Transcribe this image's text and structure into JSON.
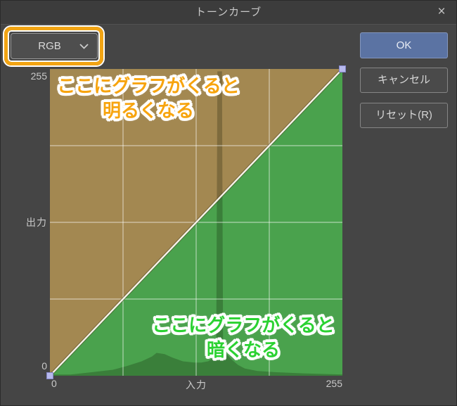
{
  "dialog": {
    "title": "トーンカーブ",
    "close_glyph": "×"
  },
  "channel_select": {
    "value": "RGB"
  },
  "buttons": {
    "ok": "OK",
    "cancel": "キャンセル",
    "reset": "リセット(R)"
  },
  "axes": {
    "y_max": "255",
    "y_label": "出力",
    "y_min": "0",
    "x_min": "0",
    "x_label": "入力",
    "x_max": "255"
  },
  "annotations": {
    "brighten": {
      "line1": "ここにグラフがくると",
      "line2": "明るくなる"
    },
    "darken": {
      "line1": "ここにグラフがくると",
      "line2": "暗くなる"
    }
  },
  "colors": {
    "brighten_area": "#a38851",
    "darken_area": "#4aa24d",
    "histogram_overlay": "rgba(10,15,0,0.24)",
    "gridline": "rgba(255,255,255,0.55)",
    "curve_line": "#f8f5ec",
    "curve_line_shadow": "rgba(80,70,40,0.5)",
    "handle_fill": "#b7b9ed",
    "handle_stroke": "#8486c8",
    "annotation_orange": "#f7a40e",
    "annotation_green": "#2bd232",
    "accent_ring": "#f2a413",
    "ok_button": "#5b73a3"
  },
  "chart_data": {
    "type": "line",
    "title": "トーンカーブ",
    "xlabel": "入力",
    "ylabel": "出力",
    "xlim": [
      0,
      255
    ],
    "ylim": [
      0,
      255
    ],
    "grid_divisions": 4,
    "curve_points": [
      [
        0,
        0
      ],
      [
        255,
        255
      ]
    ],
    "histogram_profile": [
      [
        0,
        1
      ],
      [
        18,
        1
      ],
      [
        37,
        3
      ],
      [
        55,
        5
      ],
      [
        67,
        8
      ],
      [
        80,
        12
      ],
      [
        89,
        16
      ],
      [
        93,
        19
      ],
      [
        100,
        18
      ],
      [
        107,
        15
      ],
      [
        116,
        12
      ],
      [
        126,
        11
      ],
      [
        132,
        11
      ],
      [
        138,
        12
      ],
      [
        143,
        15
      ],
      [
        145,
        17
      ],
      [
        146,
        253
      ],
      [
        150,
        253
      ],
      [
        151,
        22
      ],
      [
        155,
        17
      ],
      [
        159,
        13
      ],
      [
        164,
        9
      ],
      [
        170,
        6
      ],
      [
        181,
        4
      ],
      [
        196,
        3
      ],
      [
        221,
        2
      ],
      [
        255,
        1
      ]
    ]
  }
}
